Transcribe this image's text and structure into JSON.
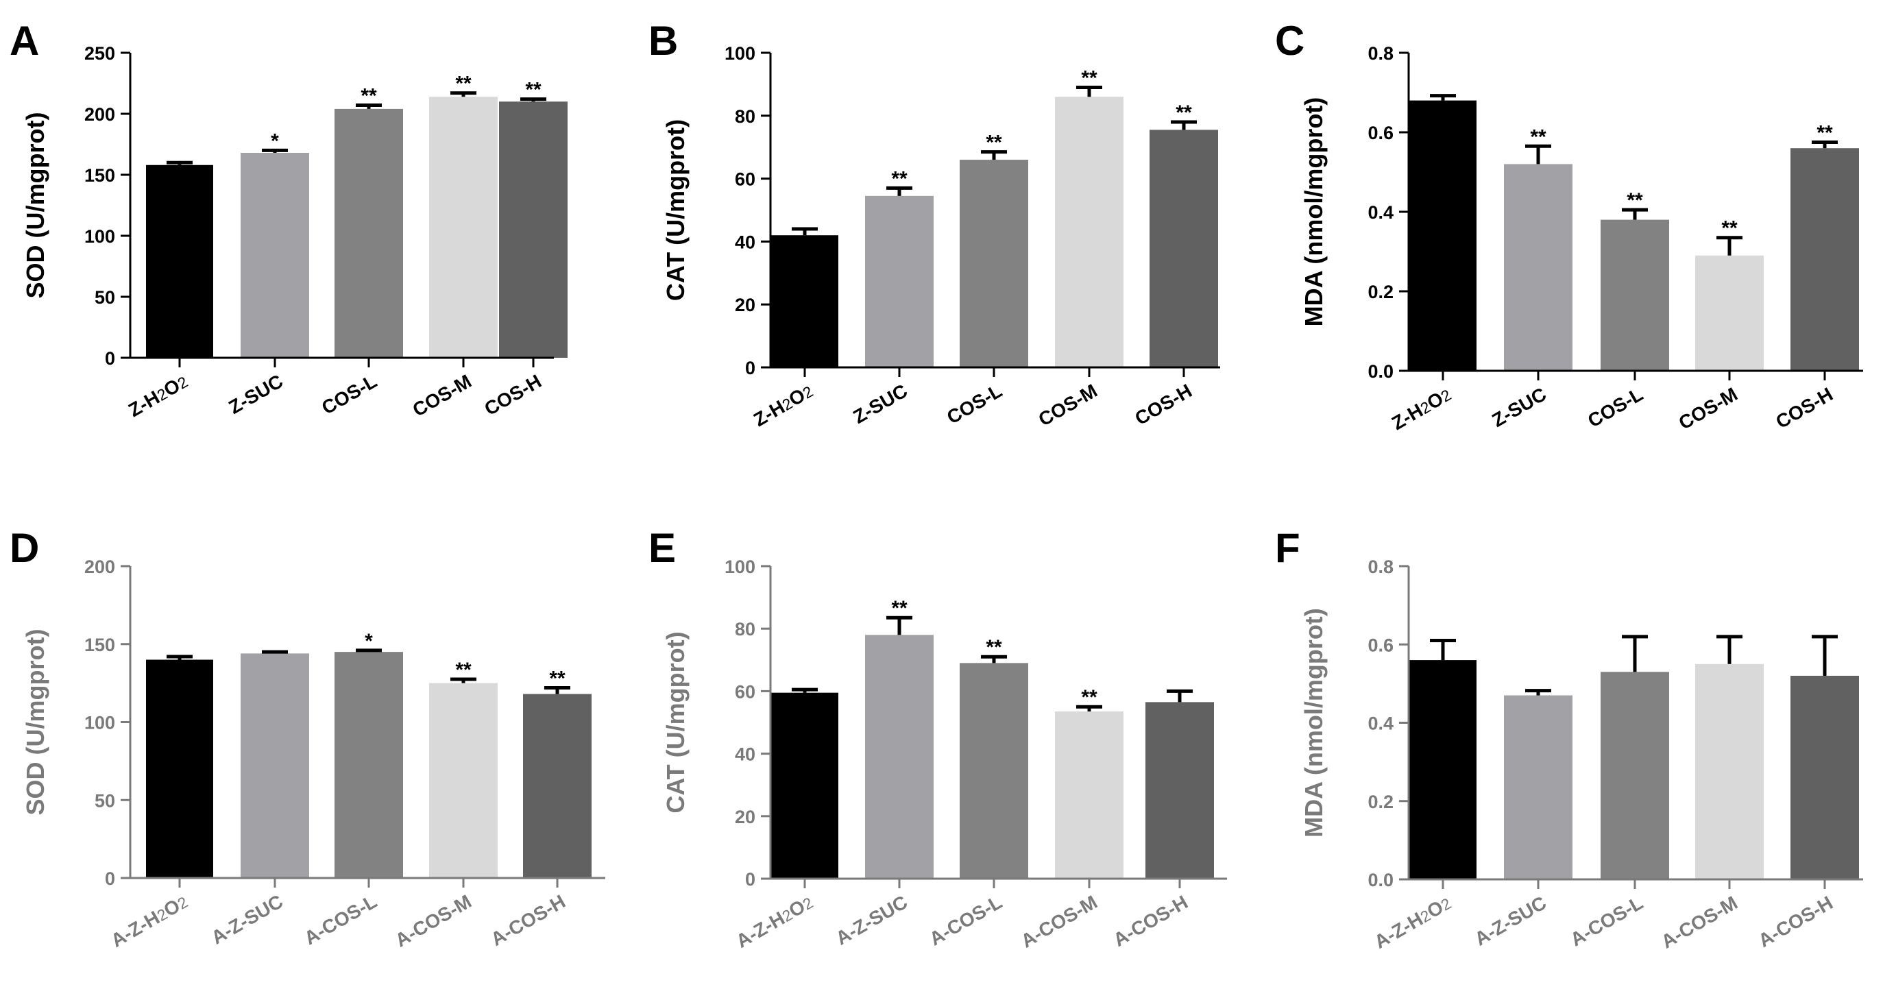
{
  "figure": {
    "colors": [
      "#000000",
      "#a2a1a6",
      "#828282",
      "#d9d9d9",
      "#616161"
    ],
    "top_row_axis_color": "#000000",
    "bottom_row_axis_color": "#7a7a7a"
  },
  "chart_data": [
    {
      "panel": "A",
      "type": "bar",
      "categories": [
        "Z-H2O2",
        "Z-SUC",
        "COS-L",
        "COS-M",
        "COS-H"
      ],
      "values": [
        158,
        168,
        204,
        214,
        210
      ],
      "errors": [
        2,
        2,
        3,
        3,
        2
      ],
      "significance": [
        "",
        "*",
        "**",
        "**",
        "**"
      ],
      "title": "",
      "xlabel": "",
      "ylabel": "SOD (U/mgprot)",
      "ylim": [
        0,
        250
      ],
      "yticks": [
        "0",
        "50",
        "100",
        "150",
        "200",
        "250"
      ]
    },
    {
      "panel": "B",
      "type": "bar",
      "categories": [
        "Z-H2O2",
        "Z-SUC",
        "COS-L",
        "COS-M",
        "COS-H"
      ],
      "values": [
        42,
        54.5,
        66,
        86,
        75.5
      ],
      "errors": [
        2,
        2.5,
        2.5,
        3,
        2.5
      ],
      "significance": [
        "",
        "**",
        "**",
        "**",
        "**"
      ],
      "title": "",
      "xlabel": "",
      "ylabel": "CAT (U/mgprot)",
      "ylim": [
        0,
        100
      ],
      "yticks": [
        "0",
        "20",
        "40",
        "60",
        "80",
        "100"
      ]
    },
    {
      "panel": "C",
      "type": "bar",
      "categories": [
        "Z-H2O2",
        "Z-SUC",
        "COS-L",
        "COS-M",
        "COS-H"
      ],
      "values": [
        0.68,
        0.52,
        0.38,
        0.29,
        0.56
      ],
      "errors": [
        0.012,
        0.045,
        0.025,
        0.045,
        0.015
      ],
      "significance": [
        "",
        "**",
        "**",
        "**",
        "**"
      ],
      "title": "",
      "xlabel": "",
      "ylabel": "MDA (nmol/mgprot)",
      "ylim": [
        0,
        0.8
      ],
      "yticks": [
        "0.0",
        "0.2",
        "0.4",
        "0.6",
        "0.8"
      ]
    },
    {
      "panel": "D",
      "type": "bar",
      "categories": [
        "A-Z-H2O2",
        "A-Z-SUC",
        "A-COS-L",
        "A-COS-M",
        "A-COS-H"
      ],
      "values": [
        140,
        144,
        145,
        125,
        118
      ],
      "errors": [
        2,
        1,
        1,
        2.5,
        4
      ],
      "significance": [
        "",
        "",
        "*",
        "**",
        "**"
      ],
      "title": "",
      "xlabel": "",
      "ylabel": "SOD (U/mgprot)",
      "ylim": [
        0,
        200
      ],
      "yticks": [
        "0",
        "50",
        "100",
        "150",
        "200"
      ]
    },
    {
      "panel": "E",
      "type": "bar",
      "categories": [
        "A-Z-H2O2",
        "A-Z-SUC",
        "A-COS-L",
        "A-COS-M",
        "A-COS-H"
      ],
      "values": [
        59.5,
        78,
        69,
        53.5,
        56.5
      ],
      "errors": [
        1,
        5.5,
        2,
        1.5,
        3.5
      ],
      "significance": [
        "",
        "**",
        "**",
        "**",
        ""
      ],
      "title": "",
      "xlabel": "",
      "ylabel": "CAT (U/mgprot)",
      "ylim": [
        0,
        100
      ],
      "yticks": [
        "0",
        "20",
        "40",
        "60",
        "80",
        "100"
      ]
    },
    {
      "panel": "F",
      "type": "bar",
      "categories": [
        "A-Z-H2O2",
        "A-Z-SUC",
        "A-COS-L",
        "A-COS-M",
        "A-COS-H"
      ],
      "values": [
        0.56,
        0.47,
        0.53,
        0.55,
        0.52
      ],
      "errors": [
        0.05,
        0.012,
        0.09,
        0.07,
        0.1
      ],
      "significance": [
        "",
        "",
        "",
        "",
        ""
      ],
      "title": "",
      "xlabel": "",
      "ylabel": "MDA (nmol/mgprot)",
      "ylim": [
        0,
        0.8
      ],
      "yticks": [
        "0.0",
        "0.2",
        "0.4",
        "0.6",
        "0.8"
      ]
    }
  ]
}
